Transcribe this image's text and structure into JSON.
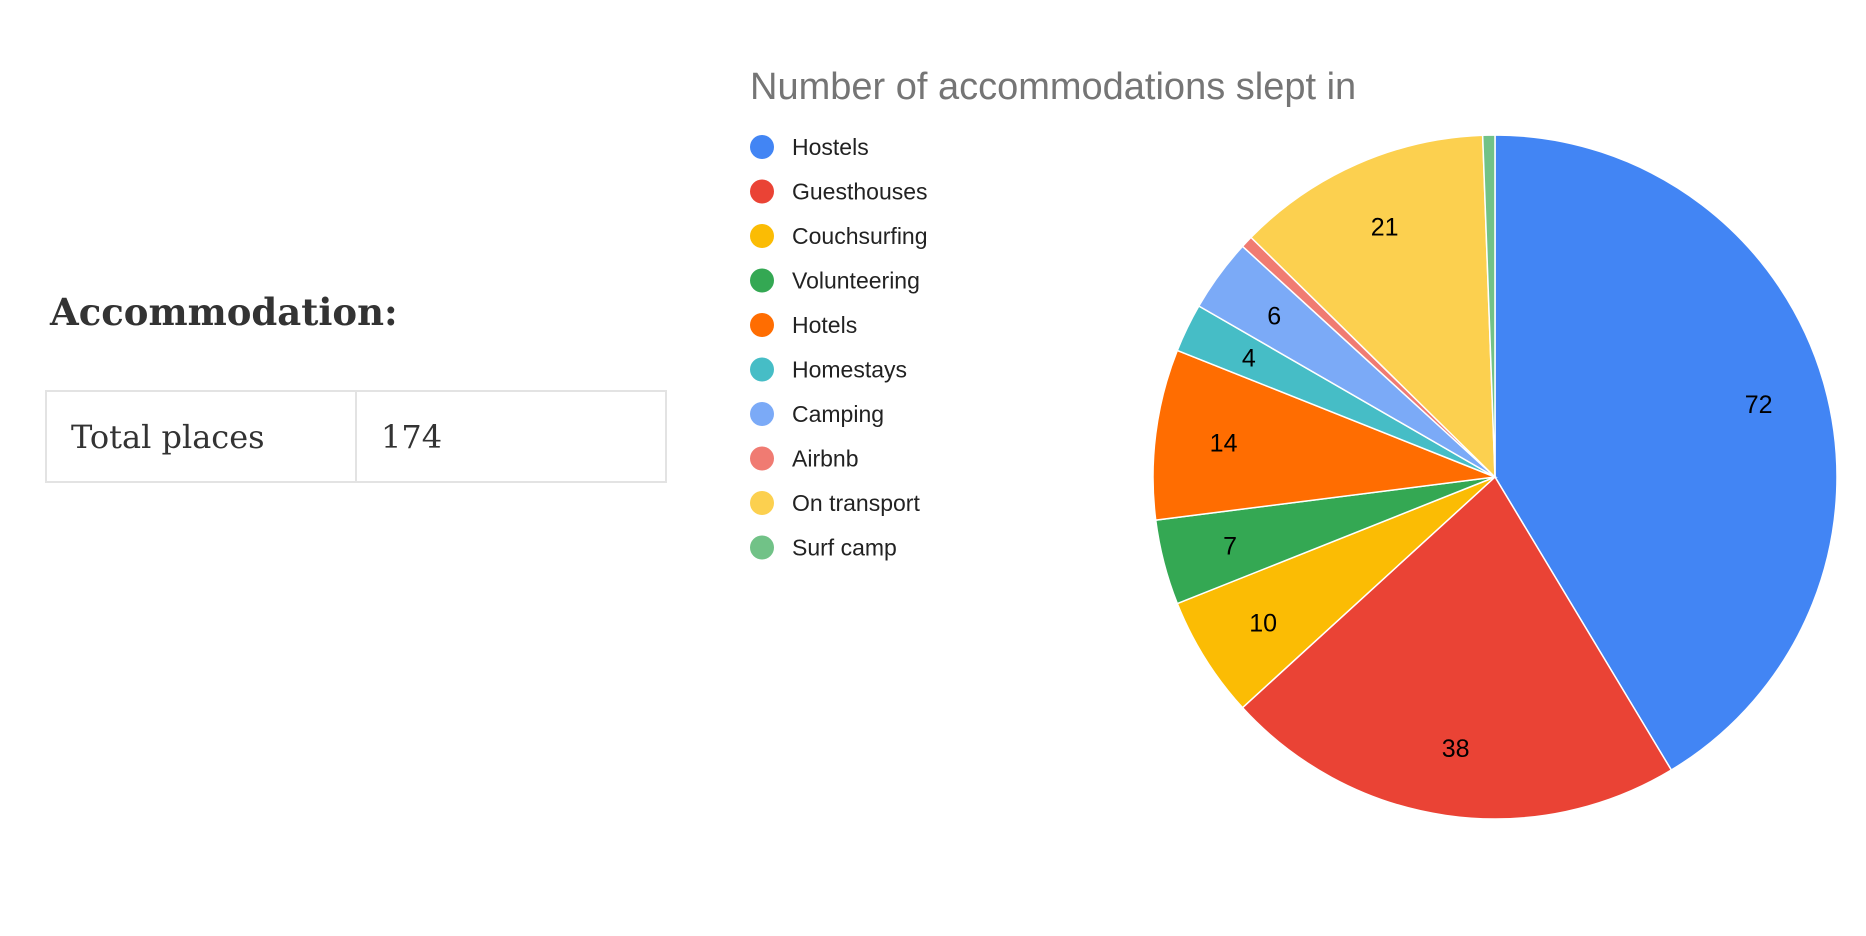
{
  "section": {
    "heading": "Accommodation:"
  },
  "summary_table": {
    "label": "Total places",
    "value": "174"
  },
  "chart_data": {
    "type": "pie",
    "title": "Number of accommodations slept in",
    "legend_position": "left",
    "categories": [
      "Hostels",
      "Guesthouses",
      "Couchsurfing",
      "Volunteering",
      "Hotels",
      "Homestays",
      "Camping",
      "Airbnb",
      "On transport",
      "Surf camp"
    ],
    "values": [
      72,
      38,
      10,
      7,
      14,
      4,
      6,
      1,
      21,
      1
    ],
    "colors": [
      "#4285F4",
      "#EA4335",
      "#FBBC04",
      "#34A853",
      "#FF6D01",
      "#46BDC6",
      "#7BAAF7",
      "#F07B72",
      "#FCD04F",
      "#71C287"
    ],
    "data_labels": [
      "72",
      "38",
      "10",
      "7",
      "14",
      "4",
      "6",
      "",
      "21",
      ""
    ]
  }
}
